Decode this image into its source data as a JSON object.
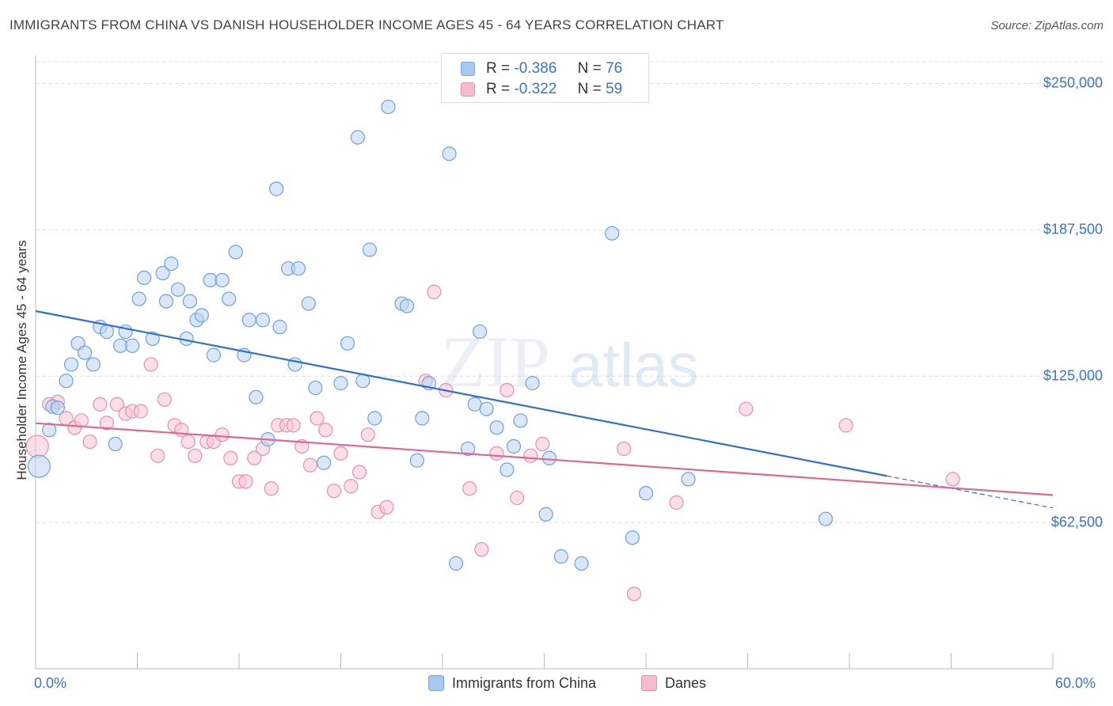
{
  "header": {
    "title": "IMMIGRANTS FROM CHINA VS DANISH HOUSEHOLDER INCOME AGES 45 - 64 YEARS CORRELATION CHART",
    "source": "Source: ZipAtlas.com"
  },
  "watermark": {
    "zip": "ZIP",
    "atlas": "atlas"
  },
  "stats_box": [
    {
      "r_label": "R =",
      "r_value": "-0.386",
      "n_label": "N =",
      "n_value": "76",
      "color": "#a9c8f0",
      "border": "#7aa6e0"
    },
    {
      "r_label": "R =",
      "r_value": "-0.322",
      "n_label": "N =",
      "n_value": "59",
      "color": "#f6bccd",
      "border": "#e890ac"
    }
  ],
  "legend": {
    "items": [
      {
        "label": "Immigrants from China",
        "color": "#a9c8f0",
        "border": "#7aa6e0"
      },
      {
        "label": "Danes",
        "color": "#f6bccd",
        "border": "#e890ac"
      }
    ]
  },
  "chart_data": {
    "type": "scatter",
    "title": "IMMIGRANTS FROM CHINA VS DANISH HOUSEHOLDER INCOME AGES 45 - 64 YEARS CORRELATION CHART",
    "xlabel": "",
    "ylabel": "Householder Income Ages 45 - 64 years",
    "xlim": [
      0,
      60
    ],
    "ylim": [
      0,
      262000
    ],
    "x_tick_labels": [
      "0.0%",
      "60.0%"
    ],
    "y_ticks": [
      62500,
      125000,
      187500,
      250000
    ],
    "y_tick_labels": [
      "$62,500",
      "$125,000",
      "$187,500",
      "$250,000"
    ],
    "grid": true,
    "legend_position": "bottom-center",
    "series": [
      {
        "name": "Immigrants from China",
        "color": "#6fa0df",
        "trend": {
          "x": [
            0,
            50.2
          ],
          "y": [
            152800,
            82400
          ],
          "extended_to": [
            60,
            68700
          ]
        },
        "points": [
          [
            0.2,
            86500
          ],
          [
            0.8,
            102000
          ],
          [
            1.0,
            112000
          ],
          [
            1.3,
            111500
          ],
          [
            1.8,
            123000
          ],
          [
            2.1,
            130000
          ],
          [
            2.5,
            139000
          ],
          [
            2.9,
            135000
          ],
          [
            3.4,
            130000
          ],
          [
            3.8,
            146000
          ],
          [
            4.2,
            144000
          ],
          [
            4.7,
            96000
          ],
          [
            5.0,
            138000
          ],
          [
            5.3,
            144000
          ],
          [
            5.7,
            138000
          ],
          [
            6.1,
            158000
          ],
          [
            6.4,
            167000
          ],
          [
            6.9,
            141000
          ],
          [
            7.5,
            169000
          ],
          [
            7.7,
            157000
          ],
          [
            8.0,
            173000
          ],
          [
            8.4,
            162000
          ],
          [
            8.9,
            141000
          ],
          [
            9.1,
            157000
          ],
          [
            9.5,
            149000
          ],
          [
            9.8,
            151000
          ],
          [
            10.3,
            166000
          ],
          [
            10.5,
            134000
          ],
          [
            11.0,
            166000
          ],
          [
            11.4,
            158000
          ],
          [
            11.8,
            178000
          ],
          [
            12.3,
            134000
          ],
          [
            12.6,
            149000
          ],
          [
            13.0,
            116000
          ],
          [
            13.4,
            149000
          ],
          [
            13.7,
            98000
          ],
          [
            14.2,
            205000
          ],
          [
            14.4,
            146000
          ],
          [
            14.9,
            171000
          ],
          [
            15.3,
            130000
          ],
          [
            15.5,
            171000
          ],
          [
            16.1,
            156000
          ],
          [
            16.5,
            120000
          ],
          [
            17.0,
            88000
          ],
          [
            18.0,
            122000
          ],
          [
            18.4,
            139000
          ],
          [
            19.0,
            227000
          ],
          [
            19.3,
            123000
          ],
          [
            19.7,
            179000
          ],
          [
            20.0,
            107000
          ],
          [
            20.8,
            240000
          ],
          [
            21.6,
            156000
          ],
          [
            21.9,
            155000
          ],
          [
            22.5,
            89000
          ],
          [
            22.8,
            107000
          ],
          [
            23.2,
            122000
          ],
          [
            24.4,
            220000
          ],
          [
            24.8,
            45000
          ],
          [
            25.5,
            94000
          ],
          [
            25.9,
            113000
          ],
          [
            26.2,
            144000
          ],
          [
            26.6,
            111000
          ],
          [
            27.2,
            103000
          ],
          [
            27.8,
            85000
          ],
          [
            28.2,
            95000
          ],
          [
            28.6,
            106000
          ],
          [
            29.3,
            122000
          ],
          [
            30.1,
            66000
          ],
          [
            31.0,
            48000
          ],
          [
            32.2,
            45000
          ],
          [
            34.0,
            186000
          ],
          [
            35.2,
            56000
          ],
          [
            36.0,
            75000
          ],
          [
            38.5,
            81000
          ],
          [
            46.6,
            64000
          ],
          [
            30.3,
            90000
          ]
        ]
      },
      {
        "name": "Danes",
        "color": "#ec8fae",
        "trend": {
          "x": [
            0,
            60
          ],
          "y": [
            104900,
            74200
          ]
        },
        "points": [
          [
            0.1,
            95000
          ],
          [
            0.8,
            113000
          ],
          [
            1.3,
            114000
          ],
          [
            1.8,
            107000
          ],
          [
            2.3,
            103000
          ],
          [
            2.7,
            106000
          ],
          [
            3.2,
            97000
          ],
          [
            3.8,
            113000
          ],
          [
            4.2,
            105000
          ],
          [
            4.8,
            113000
          ],
          [
            5.3,
            109000
          ],
          [
            5.7,
            110000
          ],
          [
            6.2,
            110000
          ],
          [
            6.8,
            130000
          ],
          [
            7.2,
            91000
          ],
          [
            7.6,
            115000
          ],
          [
            8.2,
            104000
          ],
          [
            8.6,
            102000
          ],
          [
            9.0,
            97000
          ],
          [
            9.4,
            91000
          ],
          [
            10.1,
            97000
          ],
          [
            10.5,
            97000
          ],
          [
            11.0,
            100000
          ],
          [
            11.5,
            90000
          ],
          [
            12.0,
            80000
          ],
          [
            12.4,
            80000
          ],
          [
            12.9,
            90000
          ],
          [
            13.4,
            94000
          ],
          [
            13.9,
            77000
          ],
          [
            14.3,
            104000
          ],
          [
            14.8,
            104000
          ],
          [
            15.2,
            104000
          ],
          [
            15.7,
            95000
          ],
          [
            16.2,
            87000
          ],
          [
            16.6,
            107000
          ],
          [
            17.1,
            102000
          ],
          [
            17.6,
            76000
          ],
          [
            18.0,
            92000
          ],
          [
            18.6,
            78000
          ],
          [
            19.1,
            84000
          ],
          [
            19.6,
            100000
          ],
          [
            20.2,
            67000
          ],
          [
            20.7,
            69000
          ],
          [
            23.0,
            123000
          ],
          [
            23.5,
            161000
          ],
          [
            24.2,
            119000
          ],
          [
            25.6,
            77000
          ],
          [
            26.3,
            51000
          ],
          [
            27.2,
            92000
          ],
          [
            27.8,
            119000
          ],
          [
            28.4,
            73000
          ],
          [
            29.2,
            91000
          ],
          [
            29.9,
            96000
          ],
          [
            34.7,
            94000
          ],
          [
            35.3,
            32000
          ],
          [
            37.8,
            71000
          ],
          [
            41.9,
            111000
          ],
          [
            47.8,
            104000
          ],
          [
            54.1,
            81000
          ]
        ]
      }
    ]
  }
}
